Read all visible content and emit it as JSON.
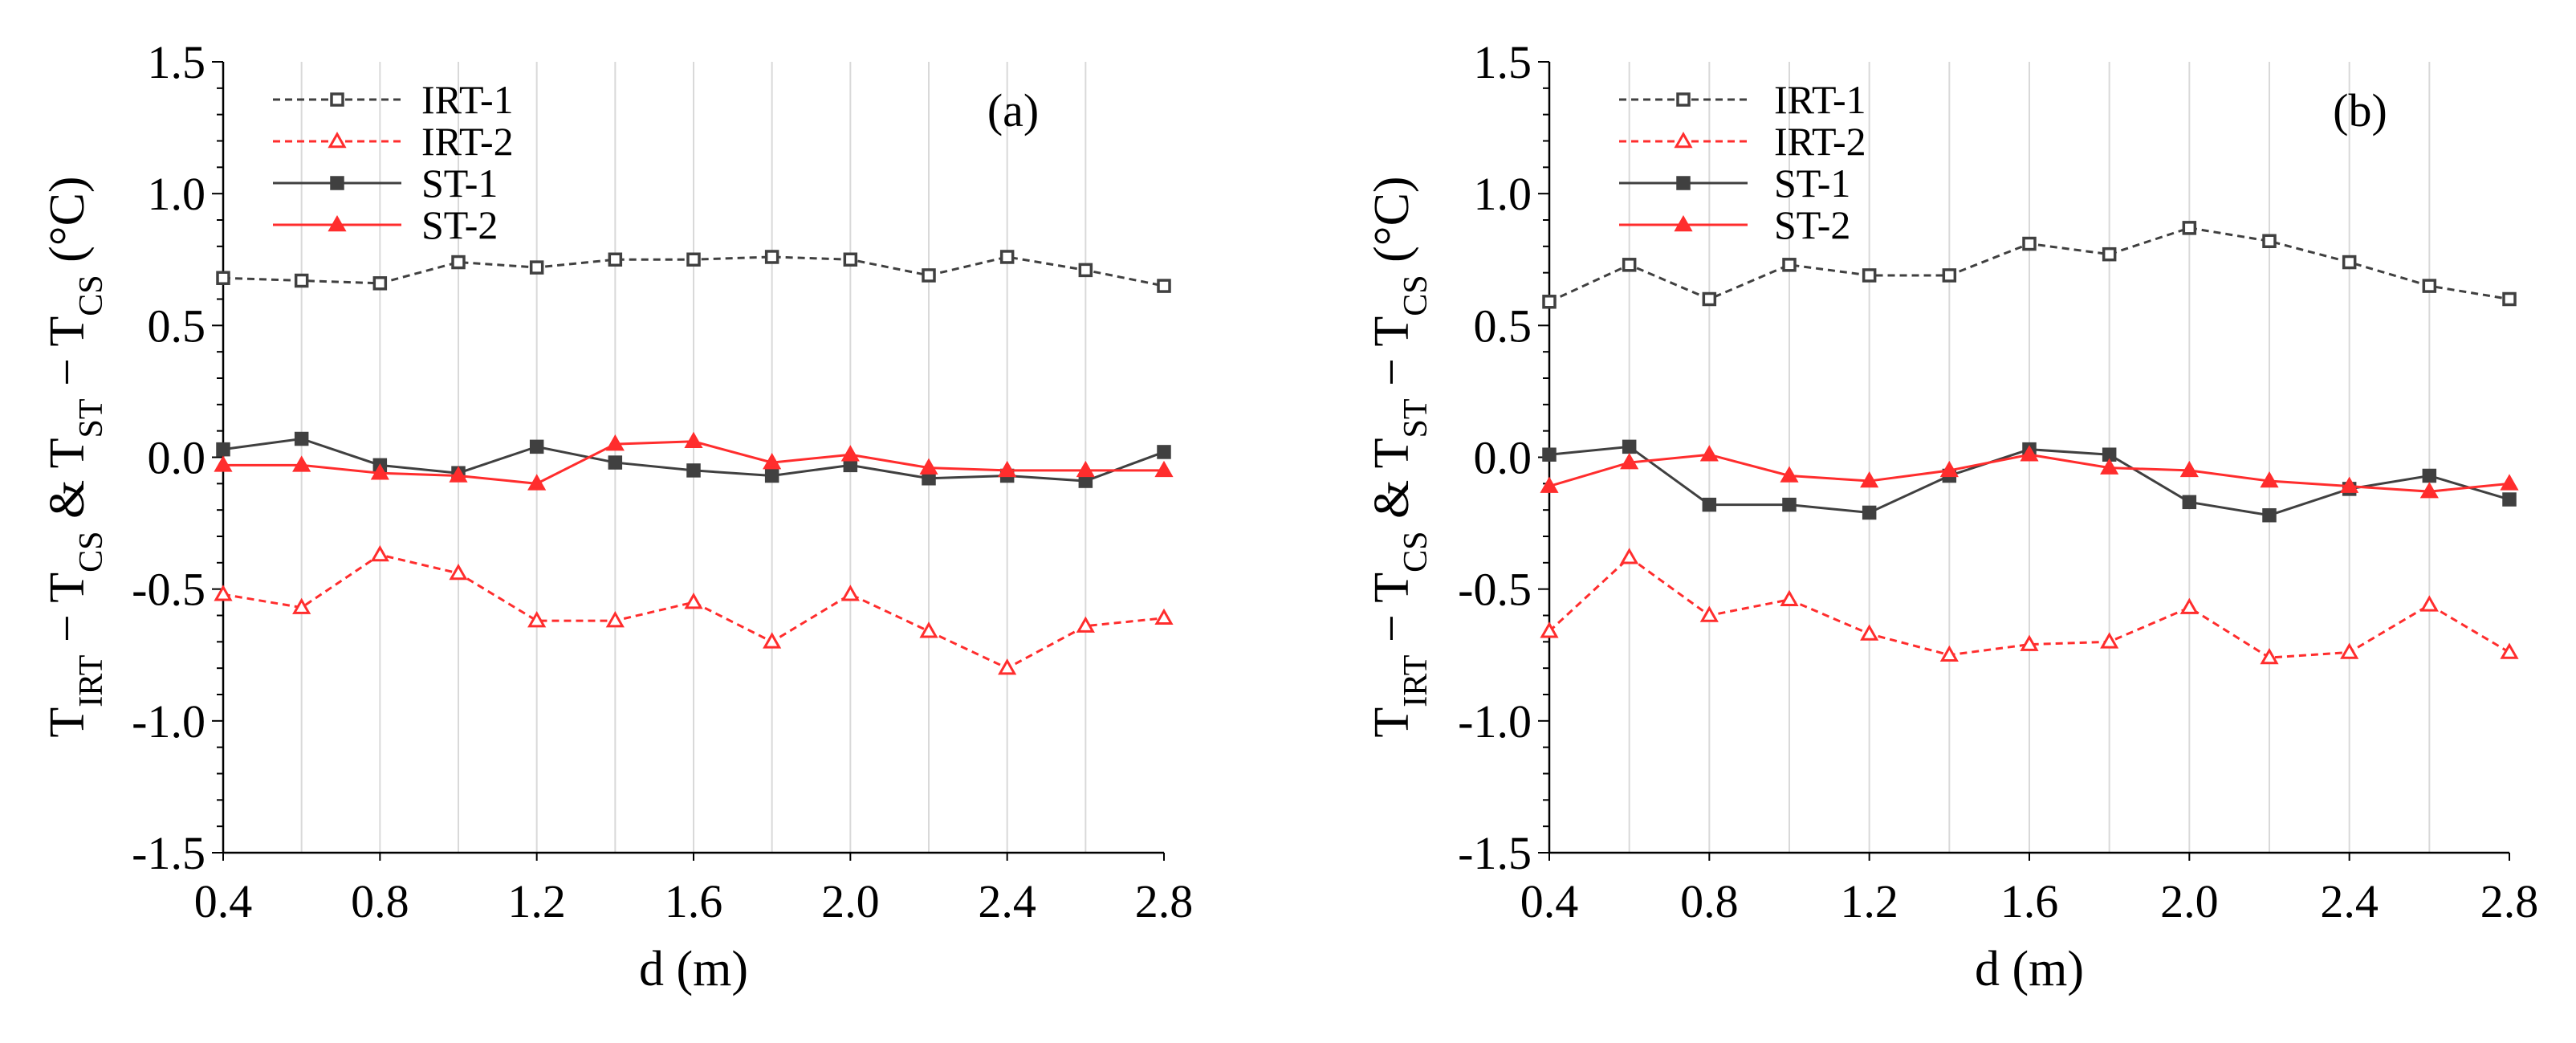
{
  "chart_data": [
    {
      "type": "line",
      "panel_label": "(a)",
      "xlabel": "d (m)",
      "ylabel": {
        "t_irt": "T",
        "sub_irt": "IRT",
        "minus1": " − T",
        "sub_cs1": "CS",
        "amp": " & T",
        "sub_st": "ST",
        "minus2": " − T",
        "sub_cs2": "CS",
        "unit": " (°C)"
      },
      "xlim": [
        0.4,
        2.8
      ],
      "ylim": [
        -1.5,
        1.5
      ],
      "x_ticks": [
        "0.4",
        "0.8",
        "1.2",
        "1.6",
        "2.0",
        "2.4",
        "2.8"
      ],
      "y_ticks": [
        "1.5",
        "1.0",
        "0.5",
        "0.0",
        "-0.5",
        "-1.0",
        "-1.5"
      ],
      "grid": "vertical",
      "legend_position": "top-left",
      "x": [
        0.4,
        0.6,
        0.8,
        1.0,
        1.2,
        1.4,
        1.6,
        1.8,
        2.0,
        2.2,
        2.4,
        2.6,
        2.8
      ],
      "series": [
        {
          "name": "IRT-1",
          "color": "#404040",
          "dash": "dashed",
          "marker": "open-square",
          "values": [
            0.68,
            0.67,
            0.66,
            0.74,
            0.72,
            0.75,
            0.75,
            0.76,
            0.75,
            0.69,
            0.76,
            0.71,
            0.65
          ]
        },
        {
          "name": "IRT-2",
          "color": "#ff2d2d",
          "dash": "dashed",
          "marker": "open-triangle",
          "values": [
            -0.52,
            -0.57,
            -0.37,
            -0.44,
            -0.62,
            -0.62,
            -0.55,
            -0.7,
            -0.52,
            -0.66,
            -0.8,
            -0.64,
            -0.61
          ]
        },
        {
          "name": "ST-1",
          "color": "#404040",
          "dash": "solid",
          "marker": "filled-square",
          "values": [
            0.03,
            0.07,
            -0.03,
            -0.06,
            0.04,
            -0.02,
            -0.05,
            -0.07,
            -0.03,
            -0.08,
            -0.07,
            -0.09,
            0.02
          ]
        },
        {
          "name": "ST-2",
          "color": "#ff2d2d",
          "dash": "solid",
          "marker": "filled-triangle",
          "values": [
            -0.03,
            -0.03,
            -0.06,
            -0.07,
            -0.1,
            0.05,
            0.06,
            -0.02,
            0.01,
            -0.04,
            -0.05,
            -0.05,
            -0.05
          ]
        }
      ]
    },
    {
      "type": "line",
      "panel_label": "(b)",
      "xlabel": "d (m)",
      "ylabel": {
        "t_irt": "T",
        "sub_irt": "IRT",
        "minus1": " − T",
        "sub_cs1": "CS",
        "amp": " & T",
        "sub_st": "ST",
        "minus2": " − T",
        "sub_cs2": "CS",
        "unit": " (°C)"
      },
      "xlim": [
        0.4,
        2.8
      ],
      "ylim": [
        -1.5,
        1.5
      ],
      "x_ticks": [
        "0.4",
        "0.8",
        "1.2",
        "1.6",
        "2.0",
        "2.4",
        "2.8"
      ],
      "y_ticks": [
        "1.5",
        "1.0",
        "0.5",
        "0.0",
        "-0.5",
        "-1.0",
        "-1.5"
      ],
      "grid": "vertical",
      "legend_position": "top-left",
      "x": [
        0.4,
        0.6,
        0.8,
        1.0,
        1.2,
        1.4,
        1.6,
        1.8,
        2.0,
        2.2,
        2.4,
        2.6,
        2.8
      ],
      "series": [
        {
          "name": "IRT-1",
          "color": "#404040",
          "dash": "dashed",
          "marker": "open-square",
          "values": [
            0.59,
            0.73,
            0.6,
            0.73,
            0.69,
            0.69,
            0.81,
            0.77,
            0.87,
            0.82,
            0.74,
            0.65,
            0.6
          ]
        },
        {
          "name": "IRT-2",
          "color": "#ff2d2d",
          "dash": "dashed",
          "marker": "open-triangle",
          "values": [
            -0.66,
            -0.38,
            -0.6,
            -0.54,
            -0.67,
            -0.75,
            -0.71,
            -0.7,
            -0.57,
            -0.76,
            -0.74,
            -0.56,
            -0.74
          ]
        },
        {
          "name": "ST-1",
          "color": "#404040",
          "dash": "solid",
          "marker": "filled-square",
          "values": [
            0.01,
            0.04,
            -0.18,
            -0.18,
            -0.21,
            -0.07,
            0.03,
            0.01,
            -0.17,
            -0.22,
            -0.12,
            -0.07,
            -0.16
          ]
        },
        {
          "name": "ST-2",
          "color": "#ff2d2d",
          "dash": "solid",
          "marker": "filled-triangle",
          "values": [
            -0.11,
            -0.02,
            0.01,
            -0.07,
            -0.09,
            -0.05,
            0.01,
            -0.04,
            -0.05,
            -0.09,
            -0.11,
            -0.13,
            -0.1
          ]
        }
      ]
    }
  ]
}
